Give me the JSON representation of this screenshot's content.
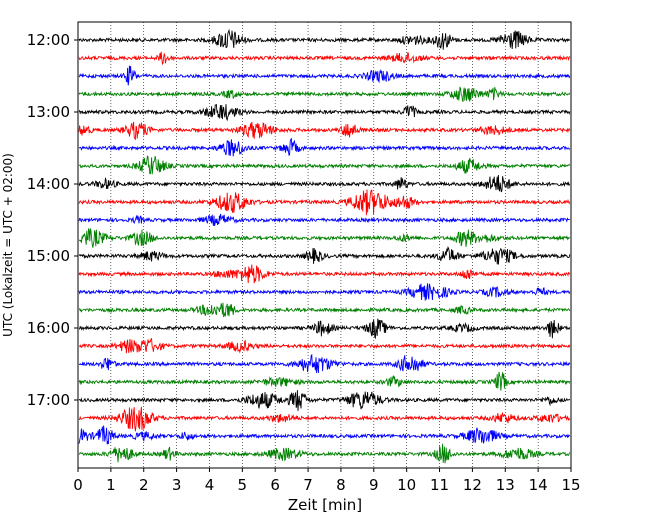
{
  "chart_data": {
    "type": "line",
    "xlabel": "Zeit  [min]",
    "ylabel": "UTC (Lokalzeit = UTC + 02:00)",
    "xlim": [
      0,
      15
    ],
    "x_ticks": [
      "0",
      "1",
      "2",
      "3",
      "4",
      "5",
      "6",
      "7",
      "8",
      "9",
      "10",
      "11",
      "12",
      "13",
      "14",
      "15"
    ],
    "y_ticks": [
      "12:00",
      "13:00",
      "14:00",
      "15:00",
      "16:00",
      "17:00"
    ],
    "grid": "vertical dotted",
    "traces_per_hour": 4,
    "trace_minutes": 15,
    "trace_start_times": [
      "12:00",
      "12:15",
      "12:30",
      "12:45",
      "13:00",
      "13:15",
      "13:30",
      "13:45",
      "14:00",
      "14:15",
      "14:30",
      "14:45",
      "15:00",
      "15:15",
      "15:30",
      "15:45",
      "16:00",
      "16:15",
      "16:30",
      "16:45",
      "17:00",
      "17:15",
      "17:30",
      "17:45"
    ],
    "series_colors": [
      "#000000",
      "#ff0000",
      "#0000ff",
      "#008000"
    ]
  }
}
